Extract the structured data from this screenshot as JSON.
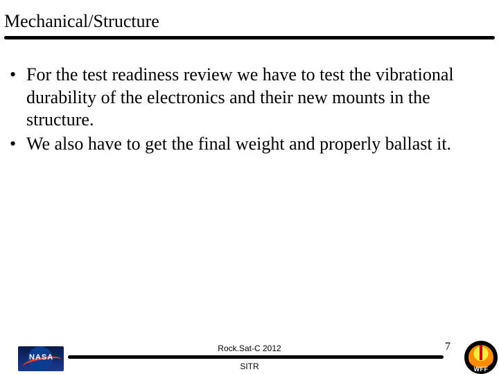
{
  "colors": {
    "background": "#ffffff",
    "text": "#000000",
    "rule": "#000000",
    "nasa_blue": "#0b3d91",
    "nasa_swoosh": "#fc3d21",
    "wff_yellow": "#ffef3a",
    "wff_orange": "#ff8c00",
    "wff_red": "#d00000"
  },
  "typography": {
    "title_fontsize_pt": 20,
    "body_fontsize_pt": 20,
    "footer_fontsize_pt": 9,
    "pagenum_fontsize_pt": 12,
    "title_family": "Times New Roman",
    "body_family": "Times New Roman",
    "footer_family": "Arial"
  },
  "title": "Mechanical/Structure",
  "bullets": [
    "For the test readiness review we have to test the vibrational durability of the electronics and their new mounts in the structure.",
    "We also have to get the final weight and properly ballast it."
  ],
  "footer": {
    "line1": "Rock.Sat-C 2012",
    "line2": "SITR",
    "page_number": "7"
  },
  "logos": {
    "left": {
      "name": "nasa-logo",
      "text": "NASA"
    },
    "right": {
      "name": "wff-logo",
      "text": "WFF"
    }
  }
}
